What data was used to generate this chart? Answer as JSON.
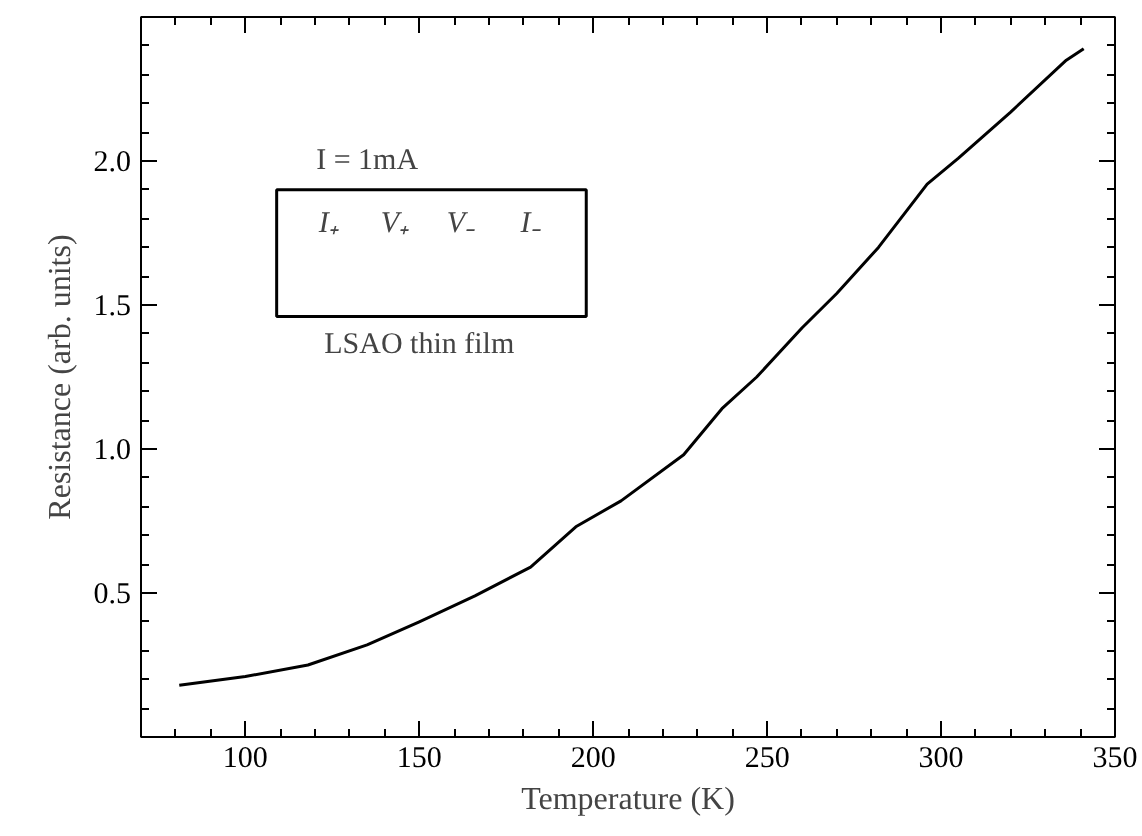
{
  "chart_data": {
    "type": "line",
    "xlabel": "Temperature (K)",
    "ylabel": "Resistance (arb. units)",
    "x": [
      81,
      100,
      118,
      135,
      150,
      166,
      182,
      195,
      208,
      226,
      237,
      247,
      260,
      270,
      282,
      296,
      305,
      320,
      336,
      341
    ],
    "series": [
      {
        "color": "#000000",
        "values": [
          0.18,
          0.21,
          0.25,
          0.32,
          0.4,
          0.49,
          0.59,
          0.73,
          0.82,
          0.98,
          1.14,
          1.25,
          1.42,
          1.54,
          1.7,
          1.92,
          2.01,
          2.17,
          2.35,
          2.39
        ]
      }
    ],
    "xlim": [
      70,
      350
    ],
    "ylim": [
      0,
      2.5
    ],
    "xticks": [
      {
        "value": 80,
        "label": null
      },
      {
        "value": 90,
        "label": null
      },
      100,
      {
        "value": 110,
        "label": null
      },
      {
        "value": 120,
        "label": null
      },
      {
        "value": 130,
        "label": null
      },
      {
        "value": 140,
        "label": null
      },
      150,
      {
        "value": 160,
        "label": null
      },
      {
        "value": 170,
        "label": null
      },
      {
        "value": 180,
        "label": null
      },
      {
        "value": 190,
        "label": null
      },
      200,
      {
        "value": 210,
        "label": null
      },
      {
        "value": 220,
        "label": null
      },
      {
        "value": 230,
        "label": null
      },
      {
        "value": 240,
        "label": null
      },
      250,
      {
        "value": 260,
        "label": null
      },
      {
        "value": 270,
        "label": null
      },
      {
        "value": 280,
        "label": null
      },
      {
        "value": 290,
        "label": null
      },
      300,
      {
        "value": 310,
        "label": null
      },
      {
        "value": 320,
        "label": null
      },
      {
        "value": 330,
        "label": null
      },
      {
        "value": 340,
        "label": null
      },
      350
    ],
    "yticks": [
      {
        "value": 0.1,
        "label": null
      },
      {
        "value": 0.2,
        "label": null
      },
      {
        "value": 0.3,
        "label": null
      },
      {
        "value": 0.4,
        "label": null
      },
      {
        "value": 0.5,
        "label": "0.5"
      },
      {
        "value": 0.6,
        "label": null
      },
      {
        "value": 0.7,
        "label": null
      },
      {
        "value": 0.8,
        "label": null
      },
      {
        "value": 0.9,
        "label": null
      },
      {
        "value": 1.0,
        "label": "1.0"
      },
      {
        "value": 1.1,
        "label": null
      },
      {
        "value": 1.2,
        "label": null
      },
      {
        "value": 1.3,
        "label": null
      },
      {
        "value": 1.4,
        "label": null
      },
      {
        "value": 1.5,
        "label": "1.5"
      },
      {
        "value": 1.6,
        "label": null
      },
      {
        "value": 1.7,
        "label": null
      },
      {
        "value": 1.8,
        "label": null
      },
      {
        "value": 1.9,
        "label": null
      },
      {
        "value": 2.0,
        "label": "2.0"
      },
      {
        "value": 2.1,
        "label": null
      },
      {
        "value": 2.2,
        "label": null
      },
      {
        "value": 2.3,
        "label": null
      },
      {
        "value": 2.4,
        "label": null
      }
    ],
    "annotations": [
      "I = 1mA",
      "I₊",
      "V₊",
      "V₋",
      "I₋",
      "LSAO thin film"
    ],
    "grid": false,
    "marker": "none",
    "line_style": "solid"
  }
}
